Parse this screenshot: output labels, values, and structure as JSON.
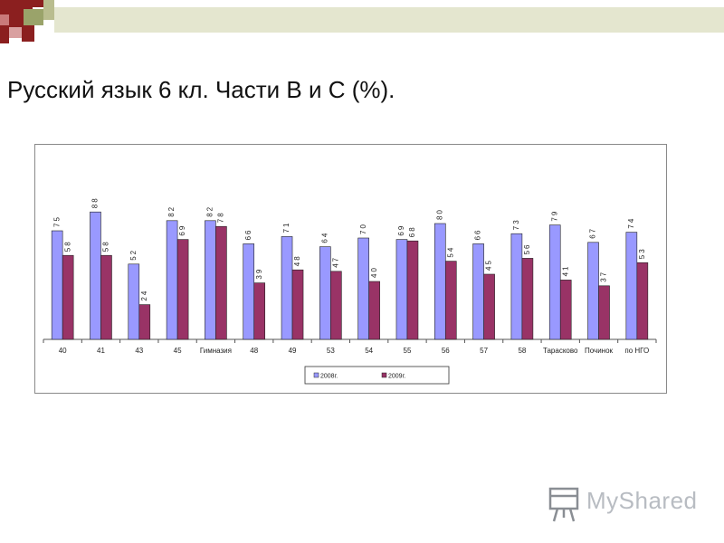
{
  "page": {
    "title": "Русский язык 6 кл. Части В и С (%).",
    "logo_text": "MyShared"
  },
  "chart_data": {
    "type": "bar",
    "categories": [
      "40",
      "41",
      "43",
      "45",
      "Гимназия",
      "48",
      "49",
      "53",
      "54",
      "55",
      "56",
      "57",
      "58",
      "Тарасково",
      "Починок",
      "по НГО"
    ],
    "series": [
      {
        "name": "2008г.",
        "color": "#9999ff",
        "values": [
          75,
          88,
          52,
          82,
          82,
          66,
          71,
          64,
          70,
          69,
          80,
          66,
          73,
          79,
          67,
          74
        ]
      },
      {
        "name": "2009г.",
        "color": "#993366",
        "values": [
          58,
          58,
          24,
          69,
          78,
          39,
          48,
          47,
          40,
          68,
          54,
          45,
          56,
          41,
          37,
          53
        ]
      }
    ],
    "ylim": [
      0,
      100
    ],
    "grid": false,
    "legend": "bottom-center",
    "data_labels": true
  },
  "colors": {
    "deco_red": "#8b1f1f",
    "deco_green": "#9aa36a",
    "deco_light": "#e4e6cf"
  }
}
